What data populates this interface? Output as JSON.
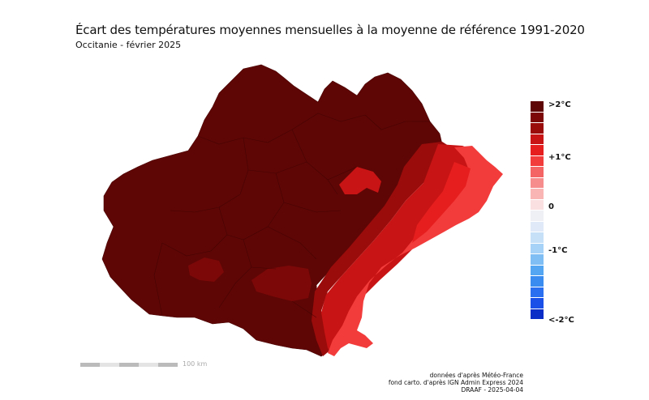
{
  "title": "Écart des températures moyennes mensuelles à la moyenne de référence 1991-2020",
  "subtitle": "Occitanie - février 2025",
  "legend": {
    "colors": [
      "#5e0605",
      "#7c0808",
      "#9a0c0c",
      "#c81414",
      "#e61e1e",
      "#f23c3c",
      "#f56464",
      "#f78c8c",
      "#f9b4b4",
      "#fae0e0",
      "#eef0f6",
      "#dfe9f7",
      "#c6e0f8",
      "#a6d2f7",
      "#7fbef5",
      "#55a6f2",
      "#3a8cf0",
      "#2a6ff0",
      "#1a4fe8",
      "#0a2dc8"
    ],
    "labels": {
      "top": ">2°C",
      "plus1": "+1°C",
      "zero": "0",
      "minus1": "-1°C",
      "bottom": "<-2°C"
    }
  },
  "scale": {
    "label": "100 km"
  },
  "credits": {
    "line1": "données d'après Météo-France",
    "line2": "fond carto. d'après IGN Admin Express 2024",
    "line3": "DRAAF - 2025-04-04"
  }
}
